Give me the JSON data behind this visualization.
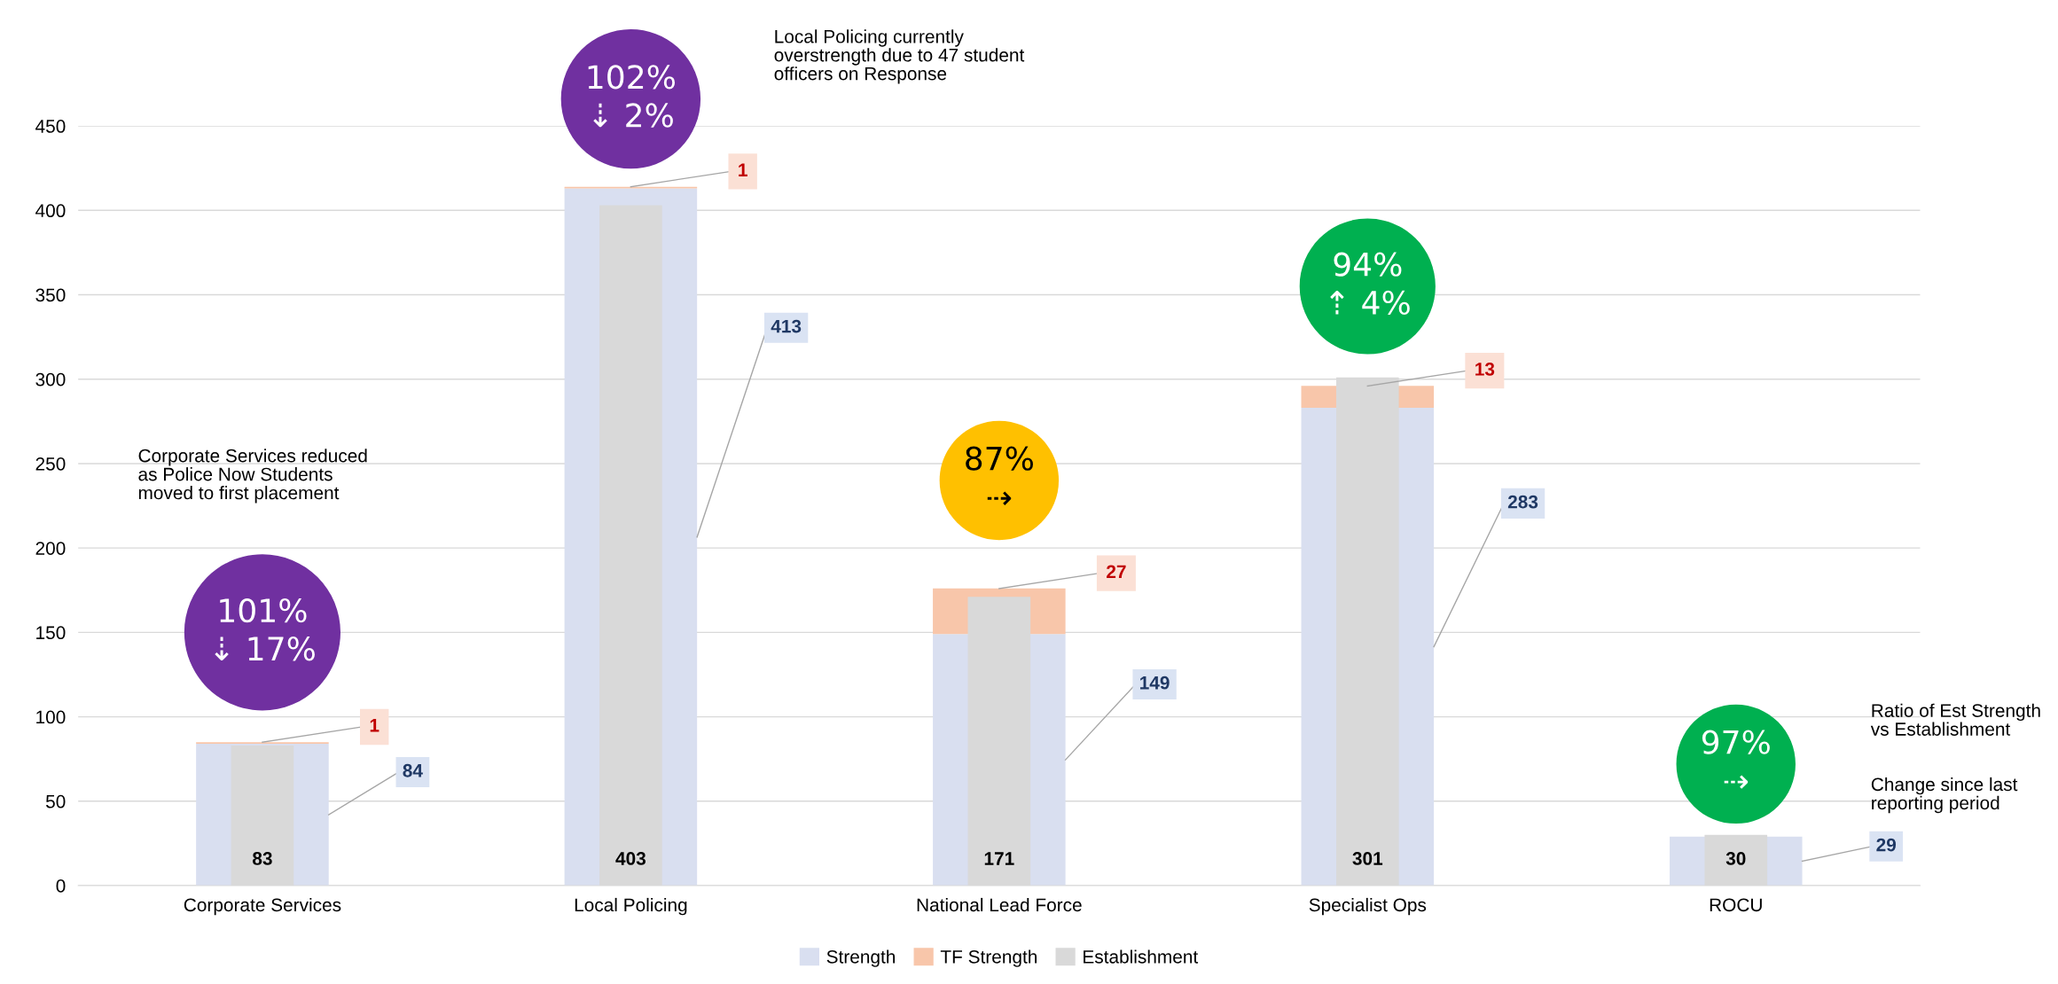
{
  "chart_data": {
    "type": "bar",
    "categories": [
      "Corporate Services",
      "Local Policing",
      "National Lead Force",
      "Specialist Ops",
      "ROCU"
    ],
    "series": [
      {
        "name": "Strength",
        "color": "#d9dff0",
        "values": [
          84,
          413,
          149,
          283,
          29
        ],
        "value_labels": [
          "84",
          "413",
          "149",
          "283",
          "29"
        ]
      },
      {
        "name": "TF Strength",
        "color": "#f8c6aa",
        "base": [
          84,
          413,
          149,
          283,
          null
        ],
        "values": [
          1,
          1,
          27,
          13,
          null
        ],
        "value_labels": [
          "1",
          "1",
          "27",
          "13",
          null
        ]
      },
      {
        "name": "Establishment",
        "color": "#d9d9d9",
        "values": [
          83,
          403,
          171,
          301,
          30
        ],
        "value_labels": [
          "83",
          "403",
          "171",
          "301",
          "30"
        ]
      }
    ],
    "ylim": [
      0,
      450
    ],
    "yticks": [
      0,
      50,
      100,
      150,
      200,
      250,
      300,
      350,
      400,
      450
    ],
    "grid": "y",
    "legend": "bottom",
    "annotations": [
      "101%\n⇣ 17%",
      "102%\n⇣ 2%",
      "87%\n⇢",
      "94%\n⇡ 4%",
      "97%\n⇢",
      "Corporate Services reduced\nas Police Now Students\nmoved to first placement",
      "Local Policing currently\noverstrength due to 47 student\nofficers on Response",
      "Ratio of Est Strength\nvs Establishment",
      "Change since last\nreporting period"
    ]
  }
}
